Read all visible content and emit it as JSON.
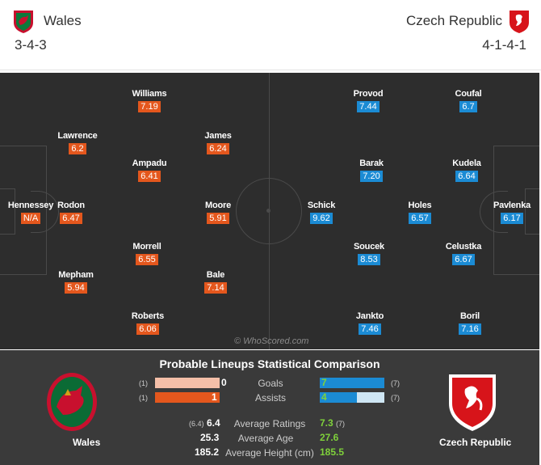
{
  "home": {
    "name": "Wales",
    "formation": "3-4-3"
  },
  "away": {
    "name": "Czech Republic",
    "formation": "4-1-4-1"
  },
  "colors": {
    "home_rating": "#e4571d",
    "away_rating": "#1b8bd4",
    "pitch": "#2d2d2d",
    "highlight": "#7fd13b"
  },
  "home_players": [
    {
      "name": "Williams",
      "rating": "7.19"
    },
    {
      "name": "Lawrence",
      "rating": "6.2"
    },
    {
      "name": "James",
      "rating": "6.24"
    },
    {
      "name": "Ampadu",
      "rating": "6.41"
    },
    {
      "name": "Hennessey",
      "rating": "N/A"
    },
    {
      "name": "Rodon",
      "rating": "6.47"
    },
    {
      "name": "Moore",
      "rating": "5.91"
    },
    {
      "name": "Morrell",
      "rating": "6.55"
    },
    {
      "name": "Mepham",
      "rating": "5.94"
    },
    {
      "name": "Bale",
      "rating": "7.14"
    },
    {
      "name": "Roberts",
      "rating": "6.06"
    }
  ],
  "away_players": [
    {
      "name": "Provod",
      "rating": "7.44"
    },
    {
      "name": "Coufal",
      "rating": "6.7"
    },
    {
      "name": "Barak",
      "rating": "7.20"
    },
    {
      "name": "Kudela",
      "rating": "6.64"
    },
    {
      "name": "Schick",
      "rating": "9.62"
    },
    {
      "name": "Holes",
      "rating": "6.57"
    },
    {
      "name": "Pavlenka",
      "rating": "6.17"
    },
    {
      "name": "Soucek",
      "rating": "8.53"
    },
    {
      "name": "Celustka",
      "rating": "6.67"
    },
    {
      "name": "Jankto",
      "rating": "7.46"
    },
    {
      "name": "Boril",
      "rating": "7.16"
    }
  ],
  "watermark": "© WhoScored.com",
  "comparison": {
    "title": "Probable Lineups Statistical Comparison",
    "home_label": "Wales",
    "away_label": "Czech Republic",
    "goals": {
      "label": "Goals",
      "home": "0",
      "away": "7",
      "home_prev": "(1)",
      "away_prev": "(7)",
      "home_share": 0.0,
      "away_share": 1.0
    },
    "assists": {
      "label": "Assists",
      "home": "1",
      "away": "4",
      "home_prev": "(1)",
      "away_prev": "(7)",
      "home_share": 1.0,
      "away_share": 0.57
    },
    "ratings": {
      "label": "Average Ratings",
      "home": "6.4",
      "home_prev": "(6.4)",
      "away": "7.3",
      "away_prev": "(7)"
    },
    "age": {
      "label": "Average Age",
      "home": "25.3",
      "away": "27.6"
    },
    "height": {
      "label": "Average Height (cm)",
      "home": "185.2",
      "away": "185.5"
    }
  }
}
